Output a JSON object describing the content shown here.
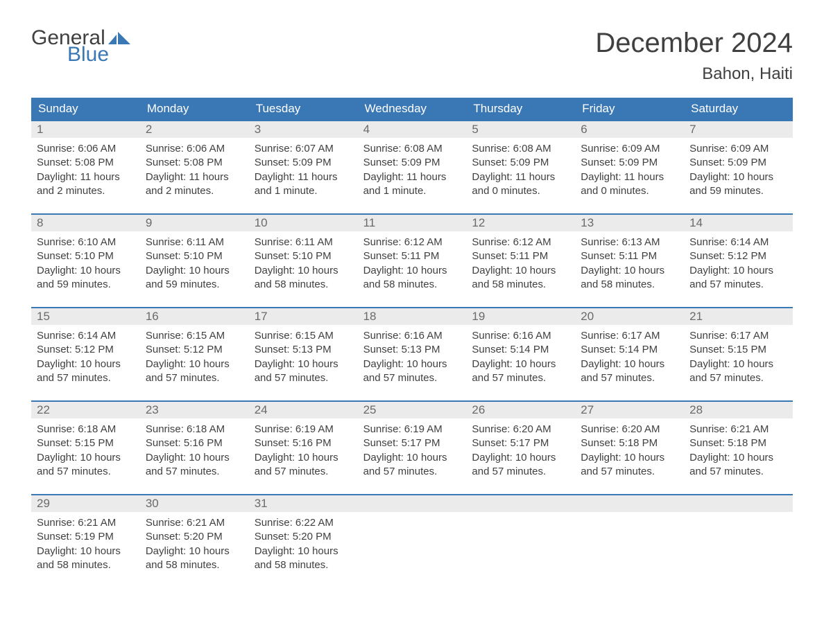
{
  "brand": {
    "text1": "General",
    "text2": "Blue",
    "color": "#3a78b5"
  },
  "title": "December 2024",
  "location": "Bahon, Haiti",
  "theme": {
    "header_bg": "#3a78b5",
    "header_fg": "#ffffff",
    "week_border": "#3a78b5",
    "daynum_bg": "#ebebeb",
    "text_color": "#404040",
    "page_bg": "#ffffff"
  },
  "day_names": [
    "Sunday",
    "Monday",
    "Tuesday",
    "Wednesday",
    "Thursday",
    "Friday",
    "Saturday"
  ],
  "weeks": [
    [
      {
        "n": "1",
        "sunrise": "Sunrise: 6:06 AM",
        "sunset": "Sunset: 5:08 PM",
        "dl1": "Daylight: 11 hours",
        "dl2": "and 2 minutes."
      },
      {
        "n": "2",
        "sunrise": "Sunrise: 6:06 AM",
        "sunset": "Sunset: 5:08 PM",
        "dl1": "Daylight: 11 hours",
        "dl2": "and 2 minutes."
      },
      {
        "n": "3",
        "sunrise": "Sunrise: 6:07 AM",
        "sunset": "Sunset: 5:09 PM",
        "dl1": "Daylight: 11 hours",
        "dl2": "and 1 minute."
      },
      {
        "n": "4",
        "sunrise": "Sunrise: 6:08 AM",
        "sunset": "Sunset: 5:09 PM",
        "dl1": "Daylight: 11 hours",
        "dl2": "and 1 minute."
      },
      {
        "n": "5",
        "sunrise": "Sunrise: 6:08 AM",
        "sunset": "Sunset: 5:09 PM",
        "dl1": "Daylight: 11 hours",
        "dl2": "and 0 minutes."
      },
      {
        "n": "6",
        "sunrise": "Sunrise: 6:09 AM",
        "sunset": "Sunset: 5:09 PM",
        "dl1": "Daylight: 11 hours",
        "dl2": "and 0 minutes."
      },
      {
        "n": "7",
        "sunrise": "Sunrise: 6:09 AM",
        "sunset": "Sunset: 5:09 PM",
        "dl1": "Daylight: 10 hours",
        "dl2": "and 59 minutes."
      }
    ],
    [
      {
        "n": "8",
        "sunrise": "Sunrise: 6:10 AM",
        "sunset": "Sunset: 5:10 PM",
        "dl1": "Daylight: 10 hours",
        "dl2": "and 59 minutes."
      },
      {
        "n": "9",
        "sunrise": "Sunrise: 6:11 AM",
        "sunset": "Sunset: 5:10 PM",
        "dl1": "Daylight: 10 hours",
        "dl2": "and 59 minutes."
      },
      {
        "n": "10",
        "sunrise": "Sunrise: 6:11 AM",
        "sunset": "Sunset: 5:10 PM",
        "dl1": "Daylight: 10 hours",
        "dl2": "and 58 minutes."
      },
      {
        "n": "11",
        "sunrise": "Sunrise: 6:12 AM",
        "sunset": "Sunset: 5:11 PM",
        "dl1": "Daylight: 10 hours",
        "dl2": "and 58 minutes."
      },
      {
        "n": "12",
        "sunrise": "Sunrise: 6:12 AM",
        "sunset": "Sunset: 5:11 PM",
        "dl1": "Daylight: 10 hours",
        "dl2": "and 58 minutes."
      },
      {
        "n": "13",
        "sunrise": "Sunrise: 6:13 AM",
        "sunset": "Sunset: 5:11 PM",
        "dl1": "Daylight: 10 hours",
        "dl2": "and 58 minutes."
      },
      {
        "n": "14",
        "sunrise": "Sunrise: 6:14 AM",
        "sunset": "Sunset: 5:12 PM",
        "dl1": "Daylight: 10 hours",
        "dl2": "and 57 minutes."
      }
    ],
    [
      {
        "n": "15",
        "sunrise": "Sunrise: 6:14 AM",
        "sunset": "Sunset: 5:12 PM",
        "dl1": "Daylight: 10 hours",
        "dl2": "and 57 minutes."
      },
      {
        "n": "16",
        "sunrise": "Sunrise: 6:15 AM",
        "sunset": "Sunset: 5:12 PM",
        "dl1": "Daylight: 10 hours",
        "dl2": "and 57 minutes."
      },
      {
        "n": "17",
        "sunrise": "Sunrise: 6:15 AM",
        "sunset": "Sunset: 5:13 PM",
        "dl1": "Daylight: 10 hours",
        "dl2": "and 57 minutes."
      },
      {
        "n": "18",
        "sunrise": "Sunrise: 6:16 AM",
        "sunset": "Sunset: 5:13 PM",
        "dl1": "Daylight: 10 hours",
        "dl2": "and 57 minutes."
      },
      {
        "n": "19",
        "sunrise": "Sunrise: 6:16 AM",
        "sunset": "Sunset: 5:14 PM",
        "dl1": "Daylight: 10 hours",
        "dl2": "and 57 minutes."
      },
      {
        "n": "20",
        "sunrise": "Sunrise: 6:17 AM",
        "sunset": "Sunset: 5:14 PM",
        "dl1": "Daylight: 10 hours",
        "dl2": "and 57 minutes."
      },
      {
        "n": "21",
        "sunrise": "Sunrise: 6:17 AM",
        "sunset": "Sunset: 5:15 PM",
        "dl1": "Daylight: 10 hours",
        "dl2": "and 57 minutes."
      }
    ],
    [
      {
        "n": "22",
        "sunrise": "Sunrise: 6:18 AM",
        "sunset": "Sunset: 5:15 PM",
        "dl1": "Daylight: 10 hours",
        "dl2": "and 57 minutes."
      },
      {
        "n": "23",
        "sunrise": "Sunrise: 6:18 AM",
        "sunset": "Sunset: 5:16 PM",
        "dl1": "Daylight: 10 hours",
        "dl2": "and 57 minutes."
      },
      {
        "n": "24",
        "sunrise": "Sunrise: 6:19 AM",
        "sunset": "Sunset: 5:16 PM",
        "dl1": "Daylight: 10 hours",
        "dl2": "and 57 minutes."
      },
      {
        "n": "25",
        "sunrise": "Sunrise: 6:19 AM",
        "sunset": "Sunset: 5:17 PM",
        "dl1": "Daylight: 10 hours",
        "dl2": "and 57 minutes."
      },
      {
        "n": "26",
        "sunrise": "Sunrise: 6:20 AM",
        "sunset": "Sunset: 5:17 PM",
        "dl1": "Daylight: 10 hours",
        "dl2": "and 57 minutes."
      },
      {
        "n": "27",
        "sunrise": "Sunrise: 6:20 AM",
        "sunset": "Sunset: 5:18 PM",
        "dl1": "Daylight: 10 hours",
        "dl2": "and 57 minutes."
      },
      {
        "n": "28",
        "sunrise": "Sunrise: 6:21 AM",
        "sunset": "Sunset: 5:18 PM",
        "dl1": "Daylight: 10 hours",
        "dl2": "and 57 minutes."
      }
    ],
    [
      {
        "n": "29",
        "sunrise": "Sunrise: 6:21 AM",
        "sunset": "Sunset: 5:19 PM",
        "dl1": "Daylight: 10 hours",
        "dl2": "and 58 minutes."
      },
      {
        "n": "30",
        "sunrise": "Sunrise: 6:21 AM",
        "sunset": "Sunset: 5:20 PM",
        "dl1": "Daylight: 10 hours",
        "dl2": "and 58 minutes."
      },
      {
        "n": "31",
        "sunrise": "Sunrise: 6:22 AM",
        "sunset": "Sunset: 5:20 PM",
        "dl1": "Daylight: 10 hours",
        "dl2": "and 58 minutes."
      },
      null,
      null,
      null,
      null
    ]
  ]
}
